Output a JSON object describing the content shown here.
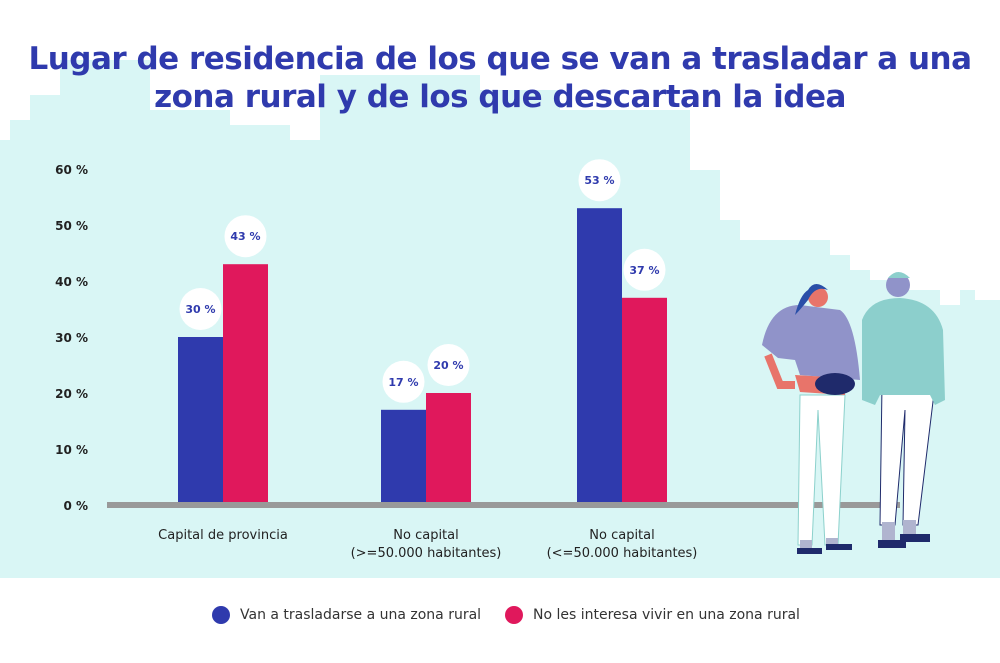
{
  "chart_data": {
    "type": "bar",
    "title": "Lugar de residencia de los que se van a trasladar a una zona rural y de los que descartan la idea",
    "categories": [
      [
        "Capital de provincia"
      ],
      [
        "No capital",
        "(>=50.000 habitantes)"
      ],
      [
        "No capital",
        "(<=50.000 habitantes)"
      ]
    ],
    "series": [
      {
        "name": "Van a trasladarse a una zona rural",
        "values": [
          30,
          17,
          53
        ],
        "labels": [
          "30 %",
          "17 %",
          "53 %"
        ],
        "color": "#2f3aad"
      },
      {
        "name": "No les interesa vivir en una zona rural",
        "values": [
          43,
          20,
          37
        ],
        "labels": [
          "43 %",
          "20 %",
          "37 %"
        ],
        "color": "#e0185c"
      }
    ],
    "ylim": [
      0,
      60
    ],
    "yticks": [
      "0 %",
      "10 %",
      "20 %",
      "30 %",
      "40 %",
      "50 %",
      "60 %"
    ],
    "grid": false,
    "legend_position": "bottom",
    "background_color": "#d9f6f5",
    "illustration": "two people standing"
  }
}
